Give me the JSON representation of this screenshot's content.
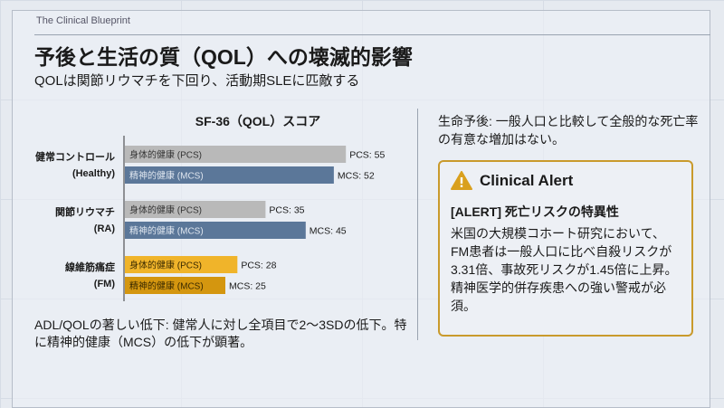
{
  "brand": "The Clinical Blueprint",
  "title": "予後と生活の質（QOL）への壊滅的影響",
  "subtitle": "QOLは関節リウマチを下回り、活動期SLEに匹敵する",
  "chart_data": {
    "type": "bar",
    "title": "SF-36（QOL）スコア",
    "categories": [
      {
        "name": "健常コントロール",
        "code": "(Healthy)"
      },
      {
        "name": "関節リウマチ",
        "code": "(RA)"
      },
      {
        "name": "線維筋痛症",
        "code": "(FM)"
      }
    ],
    "series": [
      {
        "name": "身体的健康 (PCS)",
        "short": "PCS",
        "values": [
          55,
          35,
          28
        ]
      },
      {
        "name": "精神的健康 (MCS)",
        "short": "MCS",
        "values": [
          52,
          45,
          25
        ]
      }
    ],
    "colors": {
      "Healthy": [
        "#b9b9b9",
        "#5b7799"
      ],
      "RA": [
        "#b9b9b9",
        "#5b7799"
      ],
      "FM": [
        "#f0b42a",
        "#d4960f"
      ]
    },
    "xlim": [
      0,
      60
    ]
  },
  "note": "ADL/QOLの著しい低下: 健常人に対し全項目で2〜3SDの低下。特に精神的健康（MCS）の低下が顕著。",
  "prognosis": "生命予後: 一般人口と比較して全般的な死亡率の有意な増加はない。",
  "alert": {
    "icon": "warning-triangle-icon",
    "heading": "Clinical Alert",
    "subheading": "[ALERT] 死亡リスクの特異性",
    "body": "米国の大規模コホート研究において、FM患者は一般人口に比べ自殺リスクが3.31倍、事故死リスクが1.45倍に上昇。精神医学的併存疾患への強い警戒が必須。",
    "border_color": "#c99a2c"
  }
}
